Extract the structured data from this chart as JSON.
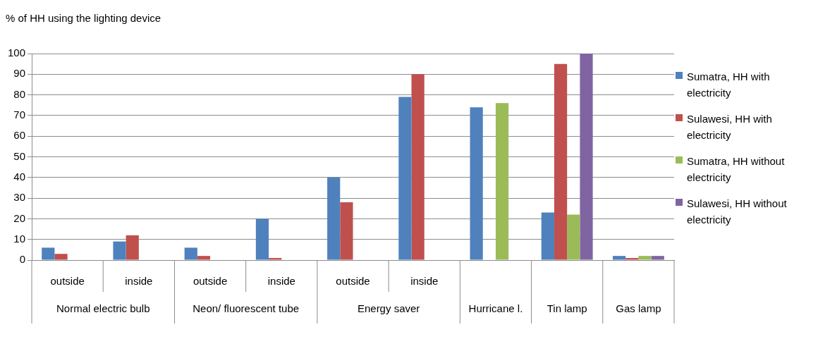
{
  "chart_data": {
    "type": "bar",
    "title": "% of HH using the lighting device",
    "categories": [
      "outside",
      "inside",
      "outside",
      "inside",
      "outside",
      "inside",
      null,
      null,
      null
    ],
    "annotations": [
      "Normal electric bulb",
      "Neon/ fluorescent tube",
      "Energy saver",
      "Hurricane l.",
      "Tin lamp",
      "Gas lamp"
    ],
    "series": [
      {
        "name": "Sumatra, HH with electricity",
        "color": "#4f81bd",
        "values": [
          6,
          9,
          6,
          20,
          40,
          79,
          74,
          23,
          2
        ]
      },
      {
        "name": "Sulawesi, HH with electricity",
        "color": "#c0504d",
        "values": [
          3,
          12,
          2,
          1,
          28,
          90,
          null,
          95,
          1
        ]
      },
      {
        "name": "Sumatra, HH without electricity",
        "color": "#9bbb59",
        "values": [
          null,
          null,
          null,
          null,
          null,
          null,
          76,
          22,
          2
        ]
      },
      {
        "name": "Sulawesi, HH without electricity",
        "color": "#8064a2",
        "values": [
          null,
          null,
          null,
          null,
          null,
          null,
          null,
          100,
          2
        ]
      }
    ],
    "ylim": [
      0,
      100
    ],
    "yticks": [
      0,
      10,
      20,
      30,
      40,
      50,
      60,
      70,
      80,
      90,
      100
    ],
    "grid": "y",
    "legend": "right"
  }
}
